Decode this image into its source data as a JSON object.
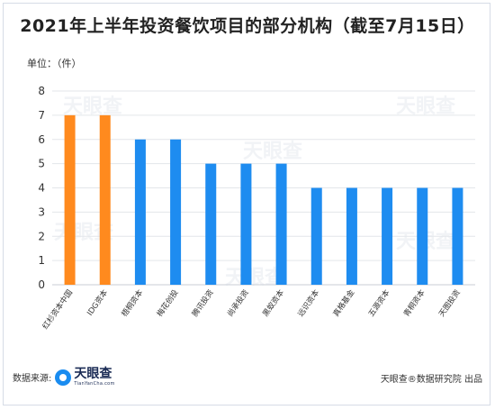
{
  "title": "2021年上半年投资餐饮项目的部分机构（截至7月15日）",
  "unit_label": "单位：（件）",
  "footer": {
    "source_label": "数据来源:",
    "brand": "天眼查",
    "brand_sub": "TianYanCha.com",
    "credit": "天眼查®数据研究院 出品"
  },
  "watermark": "天眼查",
  "colors": {
    "highlight": "#ff8a1e",
    "normal": "#1e8cf0",
    "grid": "#e3e6ea"
  },
  "chart_data": {
    "type": "bar",
    "categories": [
      "红杉资本中国",
      "IDG资本",
      "梧桐资本",
      "梅花创投",
      "腾讯投资",
      "尚承投资",
      "黑蚁资本",
      "远识资本",
      "真格基金",
      "五源资本",
      "青桐资本",
      "天图投资"
    ],
    "values": [
      7,
      7,
      6,
      6,
      5,
      5,
      5,
      4,
      4,
      4,
      4,
      4
    ],
    "highlight_count": 2,
    "ylim": [
      0,
      8
    ],
    "yticks": [
      0,
      1,
      2,
      3,
      4,
      5,
      6,
      7,
      8
    ],
    "grid": true,
    "title": "",
    "xlabel": "",
    "ylabel": ""
  }
}
